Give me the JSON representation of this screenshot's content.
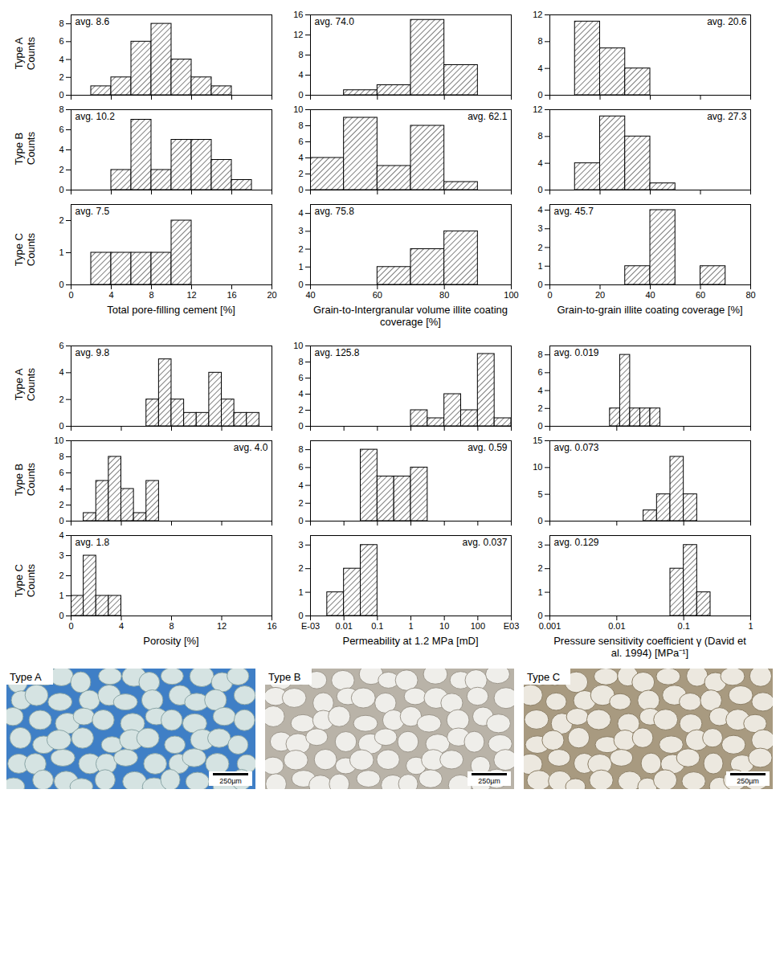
{
  "chart_data": [
    {
      "type": "histogram",
      "ylabel": "Type A Counts",
      "bins": [
        2,
        4,
        6,
        8,
        10,
        12,
        14,
        16
      ],
      "counts": [
        1,
        2,
        6,
        8,
        4,
        2,
        1
      ],
      "color": "#000000",
      "xlim": [
        0,
        20
      ],
      "xticks": [
        0,
        4,
        8,
        12,
        16,
        20
      ],
      "ylim": [
        0,
        9
      ],
      "yticks": [
        0,
        2,
        4,
        6,
        8
      ],
      "annotations": [
        "avg. 8.6"
      ],
      "tick_labels": "y"
    },
    {
      "type": "histogram",
      "bins": [
        50,
        60,
        70,
        80,
        90
      ],
      "counts": [
        1,
        2,
        15,
        6
      ],
      "color": "#000000",
      "xlim": [
        40,
        100
      ],
      "xticks": [
        40,
        60,
        80,
        100
      ],
      "ylim": [
        0,
        16
      ],
      "yticks": [
        0,
        4,
        8,
        12,
        16
      ],
      "annotations": [
        "avg. 74.0"
      ],
      "tick_labels": "y"
    },
    {
      "type": "histogram",
      "bins": [
        10,
        20,
        30,
        40
      ],
      "counts": [
        11,
        7,
        4
      ],
      "color": "#000000",
      "xlim": [
        0,
        80
      ],
      "xticks": [
        0,
        20,
        40,
        60,
        80
      ],
      "ylim": [
        0,
        12
      ],
      "yticks": [
        0,
        4,
        8,
        12
      ],
      "annotations": [
        "avg. 20.6"
      ],
      "tick_labels": "y"
    },
    {
      "type": "histogram",
      "ylabel": "Type B Counts",
      "bins": [
        4,
        6,
        8,
        10,
        12,
        14,
        16,
        18
      ],
      "counts": [
        2,
        7,
        2,
        5,
        5,
        3,
        1
      ],
      "color": "#000000",
      "xlim": [
        0,
        20
      ],
      "xticks": [
        0,
        4,
        8,
        12,
        16,
        20
      ],
      "ylim": [
        0,
        8
      ],
      "yticks": [
        0,
        2,
        4,
        6,
        8
      ],
      "annotations": [
        "avg. 10.2"
      ],
      "tick_labels": "y"
    },
    {
      "type": "histogram",
      "bins": [
        40,
        50,
        60,
        70,
        80,
        90
      ],
      "counts": [
        4,
        9,
        3,
        8,
        1
      ],
      "color": "#000000",
      "xlim": [
        40,
        100
      ],
      "xticks": [
        40,
        60,
        80,
        100
      ],
      "ylim": [
        0,
        10
      ],
      "yticks": [
        0,
        2,
        4,
        6,
        8,
        10
      ],
      "annotations": [
        "avg. 62.1"
      ],
      "tick_labels": "y"
    },
    {
      "type": "histogram",
      "bins": [
        10,
        20,
        30,
        40,
        50
      ],
      "counts": [
        4,
        11,
        8,
        1
      ],
      "color": "#000000",
      "xlim": [
        0,
        80
      ],
      "xticks": [
        0,
        20,
        40,
        60,
        80
      ],
      "ylim": [
        0,
        12
      ],
      "yticks": [
        0,
        4,
        8,
        12
      ],
      "annotations": [
        "avg. 27.3"
      ],
      "tick_labels": "y"
    },
    {
      "type": "histogram",
      "ylabel": "Type C Counts",
      "xlabel": "Total pore-filling cement [%]",
      "bins": [
        2,
        4,
        6,
        8,
        10,
        12
      ],
      "counts": [
        1,
        1,
        1,
        1,
        2
      ],
      "color": "#000000",
      "xlim": [
        0,
        20
      ],
      "xticks": [
        0,
        4,
        8,
        12,
        16,
        20
      ],
      "ylim": [
        0,
        2.5
      ],
      "yticks": [
        0,
        1,
        2
      ],
      "annotations": [
        "avg. 7.5"
      ]
    },
    {
      "type": "histogram",
      "xlabel": "Grain-to-Intergranular volume illite coating coverage [%]",
      "bins": [
        60,
        70,
        80,
        90
      ],
      "counts": [
        1,
        2,
        3
      ],
      "color": "#000000",
      "xlim": [
        40,
        100
      ],
      "xticks": [
        40,
        60,
        80,
        100
      ],
      "ylim": [
        0,
        4.5
      ],
      "yticks": [
        0,
        1,
        2,
        3,
        4
      ],
      "annotations": [
        "avg. 75.8"
      ]
    },
    {
      "type": "histogram",
      "xlabel": "Grain-to-grain illite coating coverage [%]",
      "bins": [
        30,
        40,
        50,
        60,
        70
      ],
      "counts": [
        1,
        4,
        0,
        1
      ],
      "color": "#000000",
      "xlim": [
        0,
        80
      ],
      "xticks": [
        0,
        20,
        40,
        60,
        80
      ],
      "ylim": [
        0,
        4.3
      ],
      "yticks": [
        0,
        1,
        2,
        3,
        4
      ],
      "annotations": [
        "avg. 45.7"
      ]
    },
    {
      "type": "histogram",
      "ylabel": "Type A Counts",
      "bins": [
        6,
        7,
        8,
        9,
        10,
        11,
        12,
        13,
        14,
        15
      ],
      "counts": [
        2,
        5,
        2,
        1,
        1,
        4,
        2,
        1,
        1
      ],
      "color": "#000000",
      "xlim": [
        0,
        16
      ],
      "xticks": [
        0,
        4,
        8,
        12,
        16
      ],
      "ylim": [
        0,
        6
      ],
      "yticks": [
        0,
        2,
        4,
        6
      ],
      "annotations": [
        "avg. 9.8"
      ],
      "tick_labels": "y"
    },
    {
      "type": "histogram",
      "log": "x",
      "bins": [
        1,
        3.162,
        10,
        31.62,
        100,
        316.2,
        1000
      ],
      "counts": [
        2,
        1,
        4,
        2,
        9,
        1
      ],
      "color": "#000000",
      "xlim": [
        0.001,
        1000
      ],
      "xticks": [
        {
          "value": 0.001,
          "label": "E-03"
        },
        0.01,
        0.1,
        1,
        10,
        100,
        {
          "value": 1000,
          "label": "E03"
        }
      ],
      "ylim": [
        0,
        10
      ],
      "yticks": [
        0,
        2,
        4,
        6,
        8,
        10
      ],
      "annotations": [
        "avg. 125.8"
      ],
      "tick_labels": "y"
    },
    {
      "type": "histogram",
      "log": "x",
      "bins": [
        0.0079,
        0.0112,
        0.0158,
        0.0224,
        0.0316,
        0.0447
      ],
      "counts": [
        2,
        8,
        2,
        2,
        2
      ],
      "color": "#000000",
      "xlim": [
        0.001,
        1
      ],
      "xticks": [
        0.001,
        0.01,
        0.1,
        1
      ],
      "ylim": [
        0,
        9
      ],
      "yticks": [
        0,
        2,
        4,
        6,
        8
      ],
      "annotations": [
        "avg. 0.019"
      ],
      "tick_labels": "y"
    },
    {
      "type": "histogram",
      "ylabel": "Type B Counts",
      "bins": [
        1,
        2,
        3,
        4,
        5,
        6,
        7
      ],
      "counts": [
        1,
        5,
        8,
        4,
        1,
        5
      ],
      "color": "#000000",
      "xlim": [
        0,
        16
      ],
      "xticks": [
        0,
        4,
        8,
        12,
        16
      ],
      "ylim": [
        0,
        10
      ],
      "yticks": [
        0,
        2,
        4,
        6,
        8,
        10
      ],
      "annotations": [
        "avg. 4.0"
      ],
      "tick_labels": "y"
    },
    {
      "type": "histogram",
      "log": "x",
      "bins": [
        0.03162,
        0.1,
        0.3162,
        1,
        3.162
      ],
      "counts": [
        8,
        5,
        5,
        6
      ],
      "color": "#000000",
      "xlim": [
        0.001,
        1000
      ],
      "xticks": [
        {
          "value": 0.001,
          "label": "E-03"
        },
        0.01,
        0.1,
        1,
        10,
        100,
        {
          "value": 1000,
          "label": "E03"
        }
      ],
      "ylim": [
        0,
        9
      ],
      "yticks": [
        0,
        2,
        4,
        6,
        8
      ],
      "annotations": [
        "avg. 0.59"
      ],
      "tick_labels": "y"
    },
    {
      "type": "histogram",
      "log": "x",
      "bins": [
        0.0251,
        0.0398,
        0.0631,
        0.1,
        0.1585
      ],
      "counts": [
        2,
        5,
        12,
        5
      ],
      "color": "#000000",
      "xlim": [
        0.001,
        1
      ],
      "xticks": [
        0.001,
        0.01,
        0.1,
        1
      ],
      "ylim": [
        0,
        15
      ],
      "yticks": [
        0,
        5,
        10,
        15
      ],
      "annotations": [
        "avg. 0.073"
      ],
      "tick_labels": "y"
    },
    {
      "type": "histogram",
      "ylabel": "Type C Counts",
      "xlabel": "Porosity [%]",
      "bins": [
        0,
        1,
        2,
        3,
        4
      ],
      "counts": [
        1,
        3,
        1,
        1
      ],
      "color": "#000000",
      "xlim": [
        0,
        16
      ],
      "xticks": [
        0,
        4,
        8,
        12,
        16
      ],
      "ylim": [
        0,
        4
      ],
      "yticks": [
        0,
        1,
        2,
        3,
        4
      ],
      "annotations": [
        "avg. 1.8"
      ]
    },
    {
      "type": "histogram",
      "log": "x",
      "xlabel": "Permeability at 1.2 MPa [mD]",
      "bins": [
        0.003162,
        0.01,
        0.03162,
        0.1
      ],
      "counts": [
        1,
        2,
        3
      ],
      "color": "#000000",
      "xlim": [
        0.001,
        1000
      ],
      "xticks": [
        {
          "value": 0.001,
          "label": "E-03"
        },
        0.01,
        0.1,
        1,
        10,
        100,
        {
          "value": 1000,
          "label": "E03"
        }
      ],
      "ylim": [
        0,
        3.4
      ],
      "yticks": [
        0,
        1,
        2,
        3
      ],
      "annotations": [
        "avg. 0.037"
      ]
    },
    {
      "type": "histogram",
      "log": "x",
      "xlabel": "Pressure sensitivity coefficient γ (David et al. 1994) [MPa⁻¹]",
      "bins": [
        0.0631,
        0.1,
        0.1585,
        0.2512
      ],
      "counts": [
        2,
        3,
        1
      ],
      "color": "#000000",
      "xlim": [
        0.001,
        1
      ],
      "xticks": [
        0.001,
        0.01,
        0.1,
        1
      ],
      "ylim": [
        0,
        3.4
      ],
      "yticks": [
        0,
        1,
        2,
        3
      ],
      "annotations": [
        "avg. 0.129"
      ]
    }
  ],
  "images": [
    {
      "label": "Type A",
      "scale_bar": "250µm"
    },
    {
      "label": "Type B",
      "scale_bar": "250µm"
    },
    {
      "label": "Type C",
      "scale_bar": "250µm"
    }
  ]
}
